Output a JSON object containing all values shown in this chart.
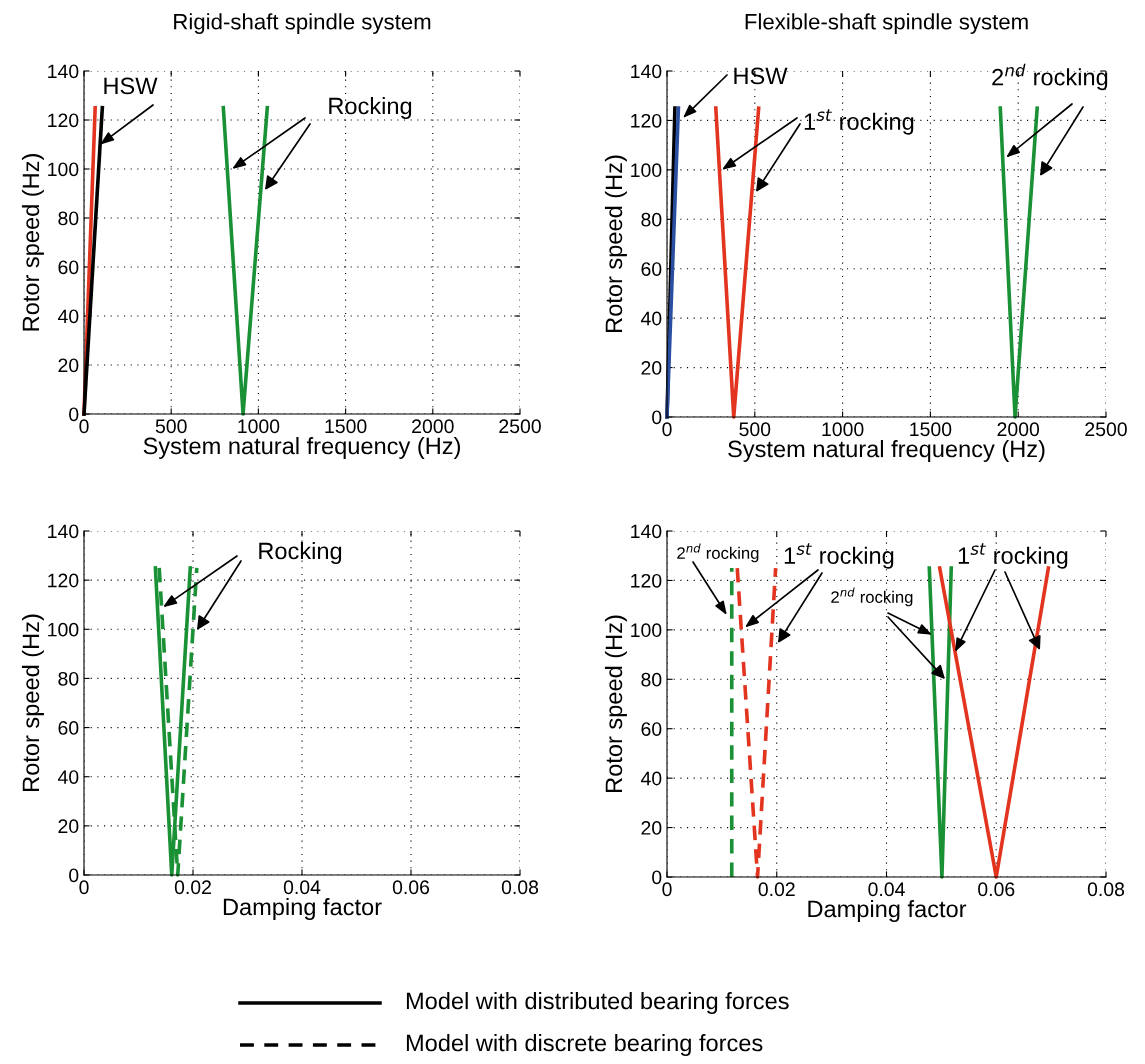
{
  "chart_data": [
    {
      "type": "line",
      "title": "Rigid-shaft spindle system",
      "xlabel": "System natural frequency (Hz)",
      "ylabel": "Rotor speed (Hz)",
      "xlim": [
        0,
        2500
      ],
      "xticks": [
        0,
        500,
        1000,
        1500,
        2000,
        2500
      ],
      "ylim": [
        0,
        140
      ],
      "yticks": [
        0,
        20,
        40,
        60,
        80,
        100,
        120,
        140
      ],
      "grid": true,
      "line_style": "solid",
      "series": [
        {
          "color": "#e2341f",
          "x": [
            0,
            64
          ],
          "values": [
            0,
            125
          ]
        },
        {
          "color": "#000000",
          "x": [
            0,
            105
          ],
          "values": [
            0,
            125
          ]
        },
        {
          "color": "#1a9135",
          "x": [
            799,
            912,
            1051
          ],
          "values": [
            125,
            0,
            125
          ]
        }
      ],
      "annotations": [
        {
          "text": "HSW",
          "x": 92,
          "y": 110
        },
        {
          "text": "Rocking",
          "x": 849,
          "y": 100
        }
      ]
    },
    {
      "type": "line",
      "title": "Flexible-shaft spindle system",
      "xlabel": "System natural frequency (Hz)",
      "ylabel": "Rotor speed (Hz)",
      "xlim": [
        0,
        2500
      ],
      "xticks": [
        0,
        500,
        1000,
        1500,
        2000,
        2500
      ],
      "ylim": [
        0,
        140
      ],
      "yticks": [
        0,
        20,
        40,
        60,
        80,
        100,
        120,
        140
      ],
      "grid": true,
      "line_style": "solid",
      "series": [
        {
          "color": "#000000",
          "x": [
            0,
            45
          ],
          "values": [
            0,
            125
          ]
        },
        {
          "color": "#2a4fa0",
          "x": [
            0,
            65
          ],
          "values": [
            0,
            125
          ]
        },
        {
          "color": "#e2341f",
          "x": [
            278,
            380,
            522
          ],
          "values": [
            125,
            0,
            125
          ]
        },
        {
          "color": "#1a9135",
          "x": [
            1898,
            1982,
            2108
          ],
          "values": [
            125,
            0,
            125
          ]
        }
      ],
      "annotations": [
        {
          "text": "HSW",
          "x": 91,
          "y": 121
        },
        {
          "text": "1$^{st}$ rocking",
          "x": 313,
          "y": 100
        },
        {
          "text": "2$^{nd}$ rocking",
          "x": 1931,
          "y": 105
        }
      ]
    },
    {
      "type": "line",
      "xlabel": "Damping factor",
      "ylabel": "Rotor speed (Hz)",
      "xlim": [
        0,
        0.08
      ],
      "xticks": [
        0,
        0.02,
        0.04,
        0.06,
        0.08
      ],
      "ylim": [
        0,
        140
      ],
      "yticks": [
        0,
        20,
        40,
        60,
        80,
        100,
        120,
        140
      ],
      "grid": true,
      "series": [
        {
          "color": "#1a9135",
          "line_style": "solid",
          "x": [
            0.0131,
            0.0161,
            0.0195
          ],
          "values": [
            125,
            0,
            125
          ]
        },
        {
          "color": "#1a9135",
          "line_style": "dashed",
          "x": [
            0.0138,
            0.0172,
            0.0207
          ],
          "values": [
            125,
            0,
            125
          ]
        }
      ],
      "annotations": [
        {
          "text": "Rocking",
          "x": 0.0145,
          "y": 109
        }
      ]
    },
    {
      "type": "line",
      "xlabel": "Damping factor",
      "ylabel": "Rotor speed (Hz)",
      "xlim": [
        0,
        0.08
      ],
      "xticks": [
        0,
        0.02,
        0.04,
        0.06,
        0.08
      ],
      "ylim": [
        0,
        140
      ],
      "yticks": [
        0,
        20,
        40,
        60,
        80,
        100,
        120,
        140
      ],
      "grid": true,
      "series": [
        {
          "color": "#1a9135",
          "line_style": "dashed",
          "x": [
            0.0118,
            0.0118
          ],
          "values": [
            0,
            125
          ]
        },
        {
          "color": "#e2341f",
          "line_style": "dashed",
          "x": [
            0.0128,
            0.0165,
            0.0198
          ],
          "values": [
            125,
            0,
            125
          ]
        },
        {
          "color": "#1a9135",
          "line_style": "solid",
          "x": [
            0.0478,
            0.0501,
            0.0518
          ],
          "values": [
            125,
            0,
            125
          ]
        },
        {
          "color": "#e2341f",
          "line_style": "solid",
          "x": [
            0.0497,
            0.06,
            0.0695
          ],
          "values": [
            125,
            0,
            125
          ]
        }
      ],
      "annotations": [
        {
          "text": "2$^{nd}$ rocking",
          "x": 0.0109,
          "y": 106
        },
        {
          "text": "1$^{st}$ rocking",
          "x": 0.0142,
          "y": 101
        },
        {
          "text": "2$^{nd}$ rocking",
          "x": 0.0483,
          "y": 98
        },
        {
          "text": "1$^{st}$ rocking",
          "x": 0.0525,
          "y": 91
        },
        "Model with distributed bearing forces",
        "Model with discrete bearing forces"
      ]
    }
  ]
}
